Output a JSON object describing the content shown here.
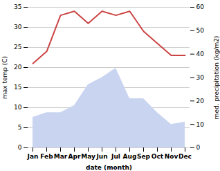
{
  "chart_data": {
    "type": "line",
    "xlabel": "date (month)",
    "ylabel": "max temp (C)",
    "y2label": "med. precipitation (kg/m2)",
    "categories": [
      "Jan",
      "Feb",
      "Mar",
      "Apr",
      "May",
      "Jun",
      "Jul",
      "Aug",
      "Sep",
      "Oct",
      "Nov",
      "Dec"
    ],
    "series": [
      {
        "type": "area",
        "color": "#c8d4f0",
        "axis": "y2",
        "values": [
          13,
          15,
          15,
          18,
          27,
          30,
          34,
          21,
          21,
          15,
          10,
          11
        ]
      },
      {
        "type": "line",
        "color": "#cc4444",
        "values": [
          21,
          24,
          33,
          34,
          31,
          34,
          33,
          34,
          29,
          26,
          23,
          23
        ]
      }
    ],
    "ylim": [
      0,
      35
    ],
    "yticks": [
      0,
      5,
      10,
      15,
      20,
      25,
      30,
      35
    ],
    "y2lim": [
      0,
      60
    ],
    "y2ticks": [
      0,
      10,
      20,
      30,
      40,
      50,
      60
    ],
    "grid": true
  }
}
